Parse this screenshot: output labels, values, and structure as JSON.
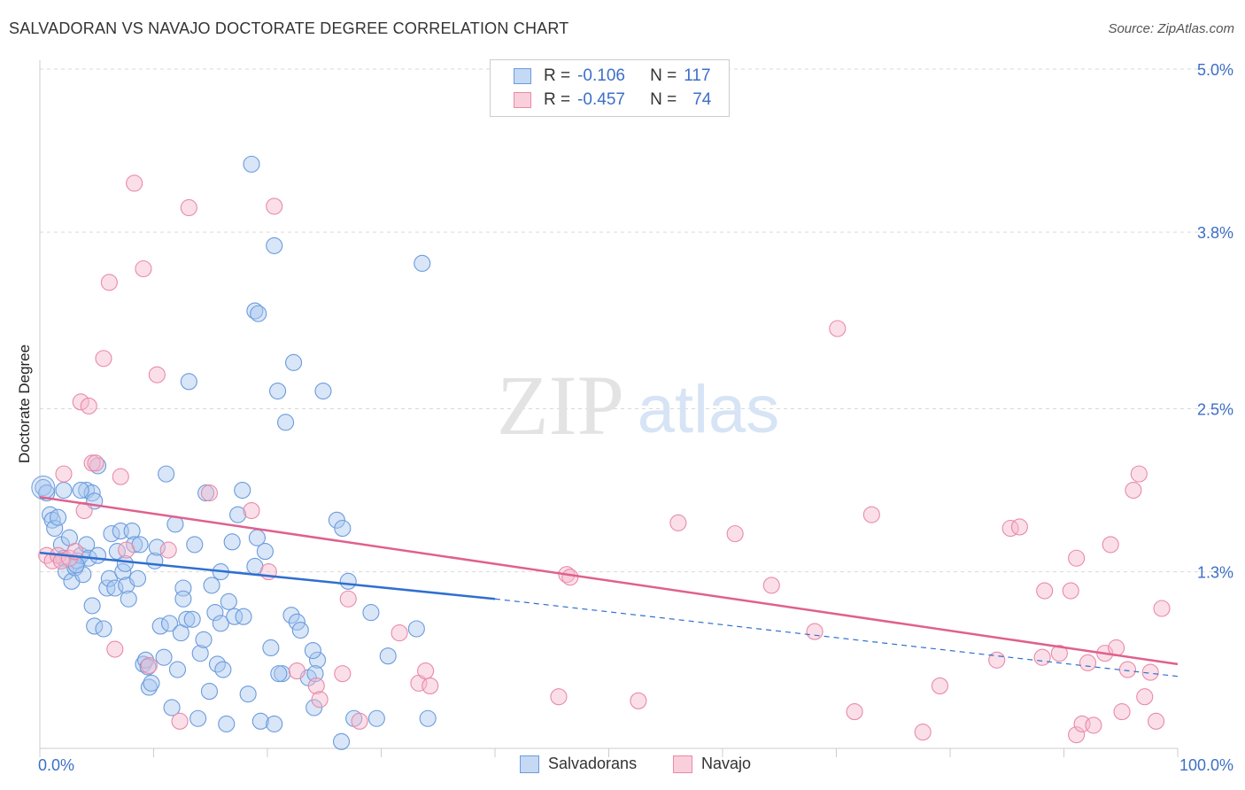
{
  "title": "SALVADORAN VS NAVAJO DOCTORATE DEGREE CORRELATION CHART",
  "source": "Source: ZipAtlas.com",
  "watermark": {
    "zip": "ZIP",
    "atlas": "atlas"
  },
  "colors": {
    "salvadoran_fill": "#a9c7ef",
    "salvadoran_stroke": "#6b9bdc",
    "salvadoran_line": "#2f6fd0",
    "navajo_fill": "#f6b8cb",
    "navajo_stroke": "#e98aa8",
    "navajo_line": "#e0608e",
    "tick_label": "#3d6fc7",
    "grid": "#d9d9d9"
  },
  "legend": {
    "rows": [
      {
        "r_label": "R =",
        "r_value": "-0.106",
        "n_label": "N =",
        "n_value": "117"
      },
      {
        "r_label": "R =",
        "r_value": "-0.457",
        "n_label": "N =",
        "n_value": "74"
      }
    ]
  },
  "bottom_legend": {
    "salvadorans": "Salvadorans",
    "navajo": "Navajo"
  },
  "chart_data": {
    "type": "scatter",
    "title": "SALVADORAN VS NAVAJO DOCTORATE DEGREE CORRELATION CHART",
    "xlabel": "",
    "ylabel": "Doctorate Degree",
    "xlim": [
      0,
      100
    ],
    "ylim": [
      0,
      5.0
    ],
    "x_tick_labels": [
      "0.0%",
      "100.0%"
    ],
    "y_ticks": [
      1.3,
      2.5,
      3.8,
      5.0
    ],
    "y_tick_labels": [
      "1.3%",
      "2.5%",
      "3.8%",
      "5.0%"
    ],
    "grid": true,
    "legend_position": "top-center",
    "series": [
      {
        "name": "Salvadorans",
        "r": -0.106,
        "n": 117,
        "trend": {
          "x": [
            0,
            40,
            100
          ],
          "y": [
            1.44,
            1.1,
            0.53
          ],
          "solid_until": 40
        },
        "points": [
          [
            0.3,
            1.92
          ],
          [
            0.6,
            1.88
          ],
          [
            0.9,
            1.72
          ],
          [
            1.1,
            1.68
          ],
          [
            1.3,
            1.62
          ],
          [
            1.6,
            1.7
          ],
          [
            1.9,
            1.5
          ],
          [
            2.1,
            1.4
          ],
          [
            2.3,
            1.3
          ],
          [
            2.6,
            1.55
          ],
          [
            2.8,
            1.23
          ],
          [
            3.1,
            1.33
          ],
          [
            3.3,
            1.38
          ],
          [
            3.6,
            1.42
          ],
          [
            3.8,
            1.28
          ],
          [
            4.1,
            1.5
          ],
          [
            4.3,
            1.4
          ],
          [
            4.1,
            1.9
          ],
          [
            4.6,
            1.88
          ],
          [
            4.8,
            1.82
          ],
          [
            3.6,
            1.9
          ],
          [
            2.1,
            1.9
          ],
          [
            4.8,
            0.9
          ],
          [
            4.6,
            1.05
          ],
          [
            5.1,
            1.42
          ],
          [
            5.6,
            0.88
          ],
          [
            5.9,
            1.18
          ],
          [
            6.1,
            1.25
          ],
          [
            6.3,
            1.58
          ],
          [
            6.6,
            1.18
          ],
          [
            6.8,
            1.45
          ],
          [
            7.1,
            1.6
          ],
          [
            7.3,
            1.3
          ],
          [
            7.6,
            1.2
          ],
          [
            7.8,
            1.1
          ],
          [
            8.1,
            1.6
          ],
          [
            8.3,
            1.5
          ],
          [
            8.6,
            1.25
          ],
          [
            8.8,
            1.5
          ],
          [
            9.1,
            0.62
          ],
          [
            9.3,
            0.65
          ],
          [
            9.6,
            0.45
          ],
          [
            9.8,
            0.48
          ],
          [
            10.1,
            1.38
          ],
          [
            10.3,
            1.48
          ],
          [
            10.6,
            0.9
          ],
          [
            10.9,
            0.67
          ],
          [
            11.1,
            2.02
          ],
          [
            11.4,
            0.92
          ],
          [
            11.6,
            0.3
          ],
          [
            11.9,
            1.65
          ],
          [
            12.1,
            0.58
          ],
          [
            12.4,
            0.85
          ],
          [
            12.6,
            1.18
          ],
          [
            12.9,
            0.95
          ],
          [
            13.1,
            2.7
          ],
          [
            13.4,
            0.95
          ],
          [
            13.6,
            1.5
          ],
          [
            13.9,
            0.22
          ],
          [
            14.1,
            0.7
          ],
          [
            14.4,
            0.8
          ],
          [
            14.6,
            1.88
          ],
          [
            14.9,
            0.42
          ],
          [
            15.1,
            1.2
          ],
          [
            15.4,
            1.0
          ],
          [
            15.6,
            0.62
          ],
          [
            15.9,
            0.92
          ],
          [
            16.1,
            0.58
          ],
          [
            16.4,
            0.18
          ],
          [
            16.6,
            1.08
          ],
          [
            16.9,
            1.52
          ],
          [
            17.1,
            0.97
          ],
          [
            17.4,
            1.72
          ],
          [
            17.8,
            1.9
          ],
          [
            17.9,
            0.97
          ],
          [
            18.3,
            0.4
          ],
          [
            18.9,
            1.34
          ],
          [
            19.1,
            1.55
          ],
          [
            19.4,
            0.2
          ],
          [
            19.8,
            1.45
          ],
          [
            20.3,
            0.74
          ],
          [
            20.6,
            0.18
          ],
          [
            20.9,
            2.63
          ],
          [
            21.3,
            0.55
          ],
          [
            21.6,
            2.4
          ],
          [
            22.1,
            0.98
          ],
          [
            22.3,
            2.84
          ],
          [
            22.6,
            0.93
          ],
          [
            22.9,
            0.87
          ],
          [
            23.6,
            0.52
          ],
          [
            24.1,
            0.3
          ],
          [
            24.4,
            0.65
          ],
          [
            24.9,
            2.63
          ],
          [
            26.1,
            1.68
          ],
          [
            26.6,
            1.62
          ],
          [
            27.1,
            1.23
          ],
          [
            27.6,
            0.22
          ],
          [
            29.1,
            1.0
          ],
          [
            29.6,
            0.22
          ],
          [
            30.6,
            0.68
          ],
          [
            33.1,
            0.88
          ],
          [
            34.1,
            0.22
          ],
          [
            26.5,
            0.05
          ],
          [
            24.2,
            0.55
          ],
          [
            18.6,
            4.3
          ],
          [
            20.6,
            3.7
          ],
          [
            33.6,
            3.57
          ],
          [
            18.9,
            3.22
          ],
          [
            19.2,
            3.2
          ],
          [
            5.1,
            2.08
          ],
          [
            9.5,
            0.6
          ],
          [
            24.0,
            0.72
          ],
          [
            21.0,
            0.55
          ],
          [
            7.5,
            1.36
          ],
          [
            3.2,
            1.35
          ],
          [
            12.6,
            1.1
          ],
          [
            15.9,
            1.3
          ]
        ]
      },
      {
        "name": "Navajo",
        "r": -0.457,
        "n": 74,
        "trend": {
          "x": [
            0,
            100
          ],
          "y": [
            1.85,
            0.62
          ]
        },
        "points": [
          [
            0.6,
            1.42
          ],
          [
            1.1,
            1.38
          ],
          [
            1.6,
            1.42
          ],
          [
            1.9,
            1.38
          ],
          [
            2.1,
            2.02
          ],
          [
            2.6,
            1.4
          ],
          [
            3.1,
            1.45
          ],
          [
            3.6,
            2.55
          ],
          [
            3.9,
            1.75
          ],
          [
            4.3,
            2.52
          ],
          [
            4.6,
            2.1
          ],
          [
            4.9,
            2.1
          ],
          [
            5.6,
            2.87
          ],
          [
            6.1,
            3.43
          ],
          [
            6.6,
            0.73
          ],
          [
            7.1,
            2.0
          ],
          [
            7.6,
            1.46
          ],
          [
            8.3,
            4.16
          ],
          [
            9.1,
            3.53
          ],
          [
            9.6,
            0.61
          ],
          [
            10.3,
            2.75
          ],
          [
            11.3,
            1.46
          ],
          [
            12.3,
            0.2
          ],
          [
            13.1,
            3.98
          ],
          [
            14.9,
            1.88
          ],
          [
            18.6,
            1.75
          ],
          [
            20.1,
            1.3
          ],
          [
            20.6,
            3.99
          ],
          [
            22.6,
            0.57
          ],
          [
            24.3,
            0.46
          ],
          [
            24.6,
            0.36
          ],
          [
            26.6,
            0.55
          ],
          [
            27.1,
            1.1
          ],
          [
            28.1,
            0.2
          ],
          [
            31.6,
            0.85
          ],
          [
            33.3,
            0.48
          ],
          [
            33.9,
            0.57
          ],
          [
            34.3,
            0.46
          ],
          [
            45.6,
            0.38
          ],
          [
            46.3,
            1.28
          ],
          [
            46.6,
            1.26
          ],
          [
            52.6,
            0.35
          ],
          [
            56.1,
            1.66
          ],
          [
            61.1,
            1.58
          ],
          [
            64.3,
            1.2
          ],
          [
            68.1,
            0.86
          ],
          [
            70.1,
            3.09
          ],
          [
            71.6,
            0.27
          ],
          [
            73.1,
            1.72
          ],
          [
            77.6,
            0.12
          ],
          [
            79.1,
            0.46
          ],
          [
            84.1,
            0.65
          ],
          [
            85.3,
            1.62
          ],
          [
            86.1,
            1.63
          ],
          [
            88.1,
            0.67
          ],
          [
            88.3,
            1.16
          ],
          [
            89.6,
            0.7
          ],
          [
            90.6,
            1.16
          ],
          [
            91.1,
            0.1
          ],
          [
            91.1,
            1.4
          ],
          [
            92.1,
            0.63
          ],
          [
            93.6,
            0.7
          ],
          [
            94.1,
            1.5
          ],
          [
            94.6,
            0.74
          ],
          [
            95.1,
            0.27
          ],
          [
            95.6,
            0.58
          ],
          [
            96.1,
            1.9
          ],
          [
            96.6,
            2.02
          ],
          [
            97.1,
            0.38
          ],
          [
            97.6,
            0.56
          ],
          [
            98.1,
            0.2
          ],
          [
            98.6,
            1.03
          ],
          [
            91.6,
            0.18
          ],
          [
            92.6,
            0.17
          ]
        ]
      }
    ]
  }
}
